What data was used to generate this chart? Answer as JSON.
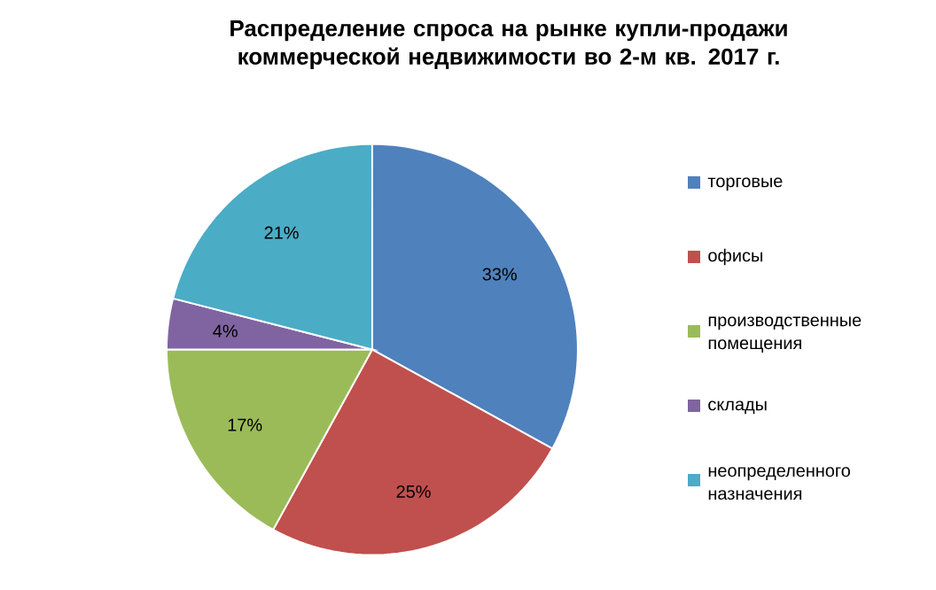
{
  "chart_data": {
    "type": "pie",
    "title": "Распределение спроса на рынке купли-продажи коммерческой недвижимости во 2-м кв. 2017 г.",
    "categories": [
      "торговые",
      "офисы",
      "производственные помещения",
      "склады",
      "неопределенного назначения"
    ],
    "values": [
      33,
      25,
      17,
      4,
      21
    ],
    "colors": [
      "#4f81bd",
      "#c0504d",
      "#9bbb59",
      "#8064a2",
      "#4bacc6"
    ],
    "value_labels": [
      "33%",
      "25%",
      "17%",
      "4%",
      "21%"
    ],
    "legend": "right"
  }
}
